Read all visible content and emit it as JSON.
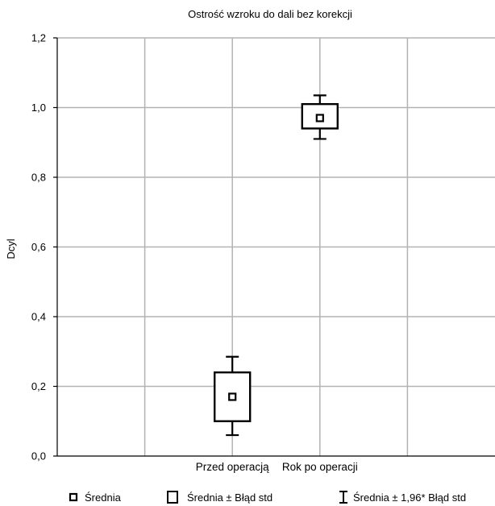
{
  "chart_data": {
    "type": "box",
    "title": "Ostrość wzroku do dali bez korekcji",
    "ylabel": "Dcyl",
    "xlabel": "",
    "ylim": [
      0.0,
      1.2
    ],
    "y_ticks": [
      "0,0",
      "0,2",
      "0,4",
      "0,6",
      "0,8",
      "1,0",
      "1,2"
    ],
    "y_tick_values": [
      0.0,
      0.2,
      0.4,
      0.6,
      0.8,
      1.0,
      1.2
    ],
    "grid": true,
    "categories": [
      "Przed operacją",
      "Rok po operacji"
    ],
    "series": [
      {
        "mean": [
          0.17,
          0.97
        ],
        "se_low": [
          0.1,
          0.94
        ],
        "se_high": [
          0.24,
          1.01
        ],
        "ci_low": [
          0.06,
          0.91
        ],
        "ci_high": [
          0.285,
          1.035
        ]
      }
    ],
    "legend": {
      "placement": "bottom",
      "items": [
        {
          "icon": "small-square-marker",
          "label": "Średnia"
        },
        {
          "icon": "box-marker",
          "label": "Średnia ± Błąd std"
        },
        {
          "icon": "whisker-marker",
          "label": "Średnia ± 1,96* Błąd std"
        }
      ]
    },
    "colors": {
      "grid": "#b3b3b3",
      "axis": "#000000",
      "marks": "#000000"
    }
  }
}
